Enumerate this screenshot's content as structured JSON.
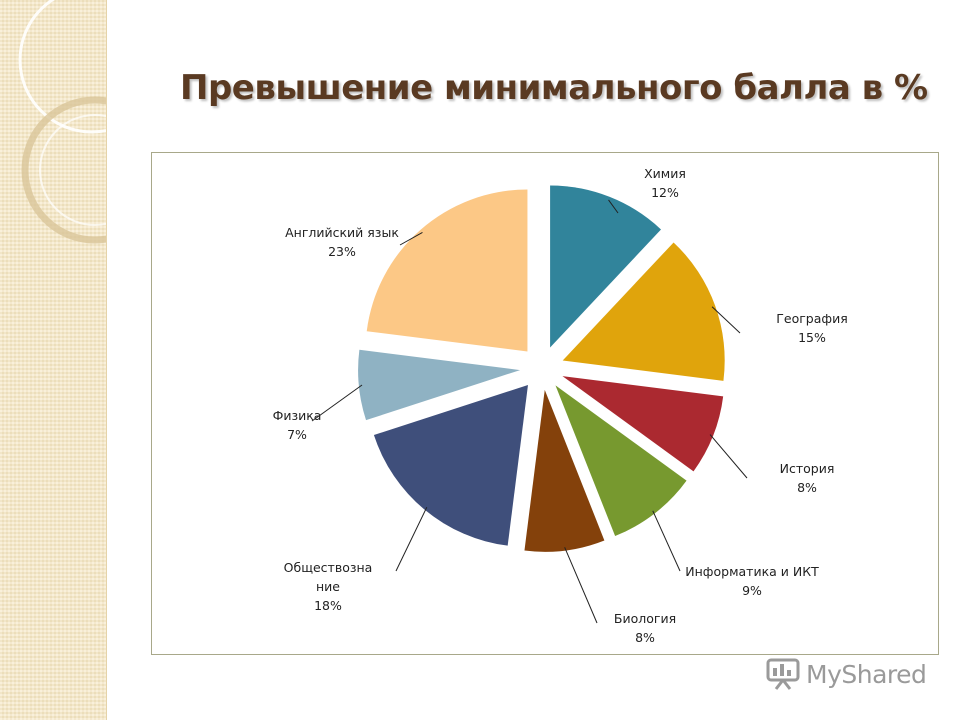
{
  "slide": {
    "title": "Превышение минимального балла в %",
    "watermark": "MyShared"
  },
  "chart_data": {
    "type": "pie",
    "exploded": true,
    "slices": [
      {
        "label": "Химия",
        "value": 12,
        "pct": "12%",
        "color": "#31849b"
      },
      {
        "label": "География",
        "value": 15,
        "pct": "15%",
        "color": "#e0a40c"
      },
      {
        "label": "История",
        "value": 8,
        "pct": "8%",
        "color": "#ab2930"
      },
      {
        "label": "Информатика и ИКТ",
        "value": 9,
        "pct": "9%",
        "color": "#77992f"
      },
      {
        "label": "Биология",
        "value": 8,
        "pct": "8%",
        "color": "#84410b"
      },
      {
        "label": "Обществознание",
        "label_lines": [
          "Обществозна",
          "ние"
        ],
        "value": 18,
        "pct": "18%",
        "color": "#3f4f7b"
      },
      {
        "label": "Физика",
        "value": 7,
        "pct": "7%",
        "color": "#8fb2c3"
      },
      {
        "label": "Английский язык",
        "value": 23,
        "pct": "23%",
        "color": "#fcc886"
      }
    ]
  }
}
